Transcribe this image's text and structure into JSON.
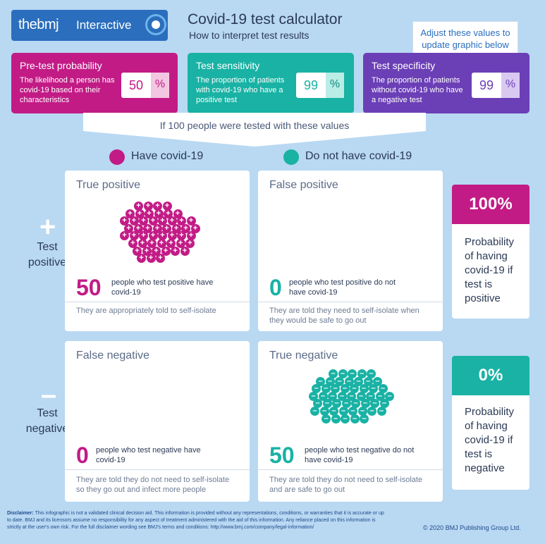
{
  "header": {
    "logo_brand": "thebmj",
    "logo_label": "Interactive",
    "title": "Covid-19 test calculator",
    "subtitle": "How to interpret test results",
    "callout": "Adjust these values to update graphic below"
  },
  "inputs": [
    {
      "title": "Pre-test probability",
      "desc": "The likelihood a person has covid-19 based on their characteristics",
      "value": "50",
      "unit": "%",
      "color": "#c21b86"
    },
    {
      "title": "Test sensitivity",
      "desc": "The proportion of patients with covid-19 who have a positive test",
      "value": "99",
      "unit": "%",
      "color": "#19b2a4"
    },
    {
      "title": "Test specificity",
      "desc": "The proportion of patients without covid-19 who have a negative test",
      "value": "99",
      "unit": "%",
      "color": "#6b3fb6"
    }
  ],
  "funnel_text": "If 100 people were tested with these values",
  "legend": {
    "have": {
      "label": "Have covid-19",
      "color": "#c21b86"
    },
    "not_have": {
      "label": "Do not have covid-19",
      "color": "#19b2a4"
    }
  },
  "rows": {
    "positive": {
      "icon": "+",
      "label_line1": "Test",
      "label_line2": "positive"
    },
    "negative": {
      "icon": "–",
      "label_line1": "Test",
      "label_line2": "negative"
    }
  },
  "quadrants": {
    "true_positive": {
      "title": "True positive",
      "count": 50,
      "desc": "people who test positive have covid-19",
      "foot": "They are appropriately told to self-isolate"
    },
    "false_positive": {
      "title": "False positive",
      "count": 0,
      "desc": "people who test positive do not have covid-19",
      "foot": "They are told they need to self-isolate when they would be safe to go out"
    },
    "false_negative": {
      "title": "False negative",
      "count": 0,
      "desc": "people who test negative have covid-19",
      "foot": "They are told they do not need to self-isolate so they go out and infect more people"
    },
    "true_negative": {
      "title": "True negative",
      "count": 50,
      "desc": "people who test negative do not have covid-19",
      "foot": "They are told they do not need to self-isolate and are safe to go out"
    }
  },
  "results": {
    "positive": {
      "value": "100%",
      "text": "Probability of having covid-19 if test is positive",
      "color": "#c21b86"
    },
    "negative": {
      "value": "0%",
      "text": "Probability of having covid-19 if test is negative",
      "color": "#19b2a4"
    }
  },
  "footer": {
    "disclaimer_label": "Disclaimer:",
    "disclaimer": "This infographic is not a validated clinical decision aid. This information is provided without any representations, conditions, or warranties that it is accurate or up to date. BMJ and its licensors assume no responsibility for any aspect of treatment administered with the aid of this information. Any reliance placed on this information is strictly at the user's own risk. For the full disclaimer wording see BMJ's terms and conditions: http://www.bmj.com/company/legal-information/",
    "copyright": "© 2020 BMJ Publishing Group Ltd."
  }
}
